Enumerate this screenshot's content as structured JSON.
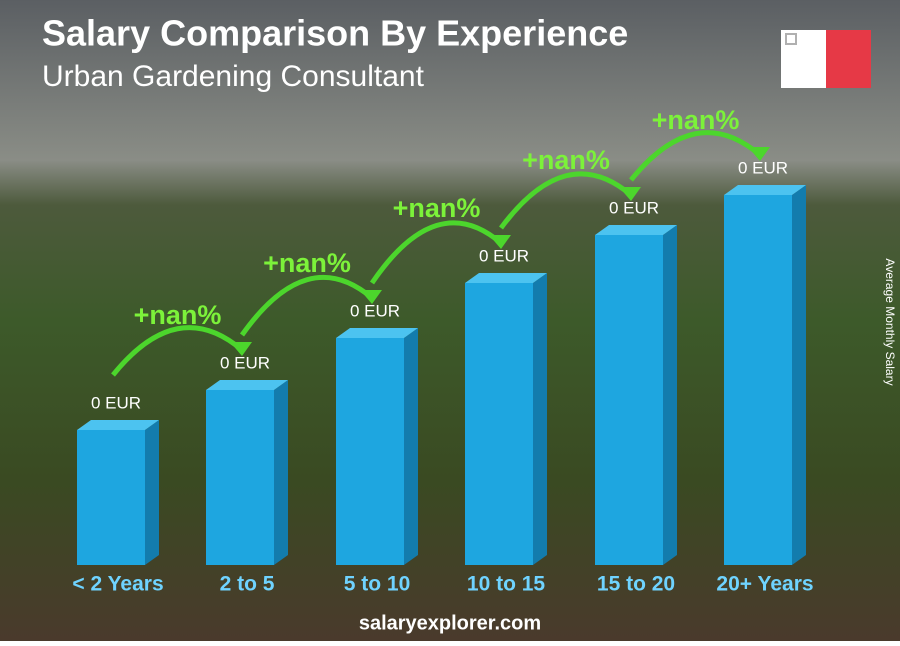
{
  "chart_data": {
    "type": "bar",
    "title": "Salary Comparison By Experience",
    "subtitle": "Urban Gardening Consultant",
    "y_label": "Average Monthly Salary",
    "categories": [
      "< 2 Years",
      "2 to 5",
      "5 to 10",
      "10 to 15",
      "15 to 20",
      "20+ Years"
    ],
    "values": [
      0,
      0,
      0,
      0,
      0,
      0
    ],
    "value_labels": [
      "0 EUR",
      "0 EUR",
      "0 EUR",
      "0 EUR",
      "0 EUR",
      "0 EUR"
    ],
    "changes": [
      "+nan%",
      "+nan%",
      "+nan%",
      "+nan%",
      "+nan%"
    ],
    "color": "#1ea6e0",
    "footer": "salaryexplorer.com"
  }
}
